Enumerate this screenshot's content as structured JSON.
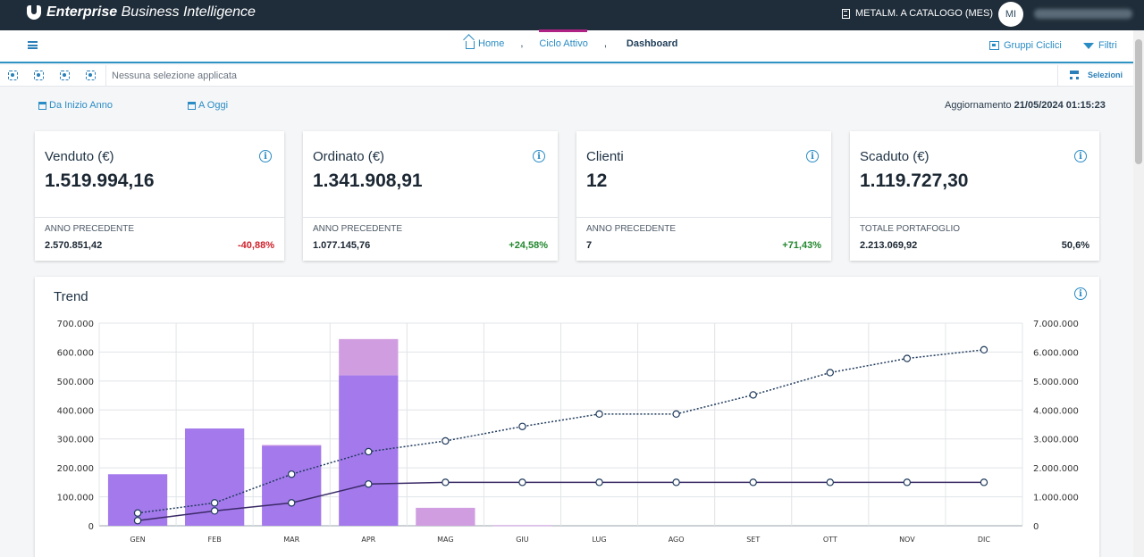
{
  "app": {
    "title_bold": "Enterprise",
    "title_rest": "Business Intelligence",
    "catalog": "METALM. A CATALOGO (MES)",
    "avatar_initials": "MI"
  },
  "nav": {
    "home": "Home",
    "sep1": ",",
    "ciclo": "Ciclo Attivo",
    "sep2": ",",
    "dashboard": "Dashboard",
    "gruppi": "Gruppi Ciclici",
    "filtri": "Filtri"
  },
  "selection": {
    "text": "Nessuna selezione applicata",
    "button": "Selezioni"
  },
  "period": {
    "ytd": "Da Inizio Anno",
    "today": "A Oggi",
    "update_label": "Aggiornamento",
    "update_value": "21/05/2024 01:15:23"
  },
  "kpis": [
    {
      "title": "Venduto (€)",
      "value": "1.519.994,16",
      "sub": "ANNO PRECEDENTE",
      "prev": "2.570.851,42",
      "delta": "-40,88%",
      "delta_color": "#d0212b"
    },
    {
      "title": "Ordinato (€)",
      "value": "1.341.908,91",
      "sub": "ANNO PRECEDENTE",
      "prev": "1.077.145,76",
      "delta": "+24,58%",
      "delta_color": "#22872e"
    },
    {
      "title": "Clienti",
      "value": "12",
      "sub": "ANNO PRECEDENTE",
      "prev": "7",
      "delta": "+71,43%",
      "delta_color": "#22872e"
    },
    {
      "title": "Scaduto (€)",
      "value": "1.119.727,30",
      "sub": "TOTALE PORTAFOGLIO",
      "prev": "2.213.069,92",
      "delta": "50,6%",
      "delta_color": "#1b2733"
    }
  ],
  "trend": {
    "title": "Trend",
    "chart_data": {
      "type": "bar",
      "categories": [
        "GEN",
        "FEB",
        "MAR",
        "APR",
        "MAG",
        "GIU",
        "LUG",
        "AGO",
        "SET",
        "OTT",
        "NOV",
        "DIC"
      ],
      "y_left_ticks": [
        "700.000",
        "600.000",
        "500.000",
        "400.000",
        "300.000",
        "200.000",
        "100.000",
        "0"
      ],
      "y_right_ticks": [
        "7.000.000",
        "6.000.000",
        "5.000.000",
        "4.000.000",
        "3.000.000",
        "2.000.000",
        "1.000.000",
        "0"
      ],
      "ylim_left": [
        0,
        700000
      ],
      "ylim_right": [
        0,
        7000000
      ],
      "series": [
        {
          "kind": "bar",
          "axis": "left",
          "color": "#a479ec",
          "values": [
            178000,
            336000,
            276000,
            520000,
            0,
            0,
            0,
            0,
            0,
            0,
            0,
            0
          ]
        },
        {
          "kind": "bar-stacked",
          "axis": "left",
          "color": "#d09ee0",
          "values": [
            0,
            0,
            3000,
            125000,
            62000,
            2000,
            0,
            0,
            0,
            0,
            0,
            0
          ]
        },
        {
          "kind": "line-dotted",
          "axis": "right",
          "color": "#1f3a5c",
          "values": [
            440000,
            790000,
            1780000,
            2560000,
            2930000,
            3430000,
            3860000,
            3860000,
            4520000,
            5290000,
            5780000,
            6080000
          ]
        },
        {
          "kind": "line-solid",
          "axis": "right",
          "color": "#3a2a66",
          "values": [
            178000,
            514000,
            790000,
            1440000,
            1500000,
            1500000,
            1500000,
            1500000,
            1500000,
            1500000,
            1500000,
            1500000
          ]
        }
      ],
      "grid": true
    }
  },
  "colors": {
    "topbar": "#1f2d3a",
    "accent": "#2a8cc4",
    "active_tab": "#b02384"
  },
  "icons": {
    "info": "i"
  }
}
